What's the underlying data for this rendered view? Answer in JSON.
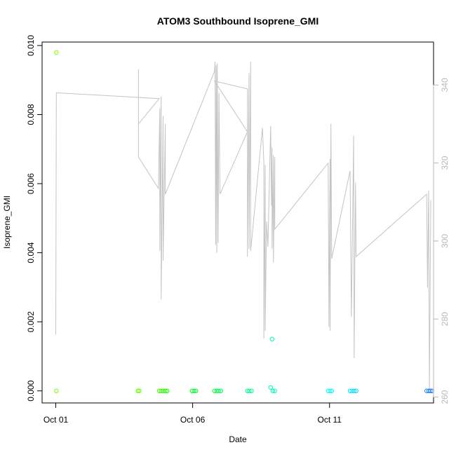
{
  "chart_data": {
    "type": "scatter",
    "title": "ATOM3 Southbound Isoprene_GMI",
    "xlabel": "Date",
    "ylabel": "Isoprene_GMI",
    "xlim": [
      -0.5,
      13.8
    ],
    "ylim": [
      -0.00035,
      0.0101
    ],
    "y2lim": [
      258.5,
      351.0
    ],
    "x_ticks": [
      0,
      5,
      10
    ],
    "x_tick_labels": [
      "Oct 01",
      "Oct 06",
      "Oct 11"
    ],
    "y_ticks": [
      0.0,
      0.002,
      0.004,
      0.006,
      0.008,
      0.01
    ],
    "y_tick_labels": [
      "0.000",
      "0.002",
      "0.004",
      "0.006",
      "0.008",
      "0.010"
    ],
    "y2_ticks": [
      260,
      280,
      300,
      320,
      340
    ],
    "y2_tick_labels": [
      "260",
      "280",
      "300",
      "320",
      "340"
    ],
    "grid": false,
    "series": [
      {
        "kind": "points",
        "axis": "left",
        "points": [
          {
            "x": 0.02,
            "y": 0.0098,
            "color": "#80ff00"
          },
          {
            "x": 0.02,
            "y": 0.0,
            "color": "#80ff00"
          },
          {
            "x": 3.0,
            "y": 0.0,
            "color": "#66ff00"
          },
          {
            "x": 3.05,
            "y": 0.0,
            "color": "#66ff00"
          },
          {
            "x": 3.78,
            "y": 0.0,
            "color": "#4dff00"
          },
          {
            "x": 3.85,
            "y": 0.0,
            "color": "#40ff00"
          },
          {
            "x": 3.92,
            "y": 0.0,
            "color": "#33ff00"
          },
          {
            "x": 4.0,
            "y": 0.0,
            "color": "#26ff00"
          },
          {
            "x": 4.07,
            "y": 0.0,
            "color": "#1aff00"
          },
          {
            "x": 4.98,
            "y": 0.0,
            "color": "#00ff1a"
          },
          {
            "x": 5.05,
            "y": 0.0,
            "color": "#00ff26"
          },
          {
            "x": 5.12,
            "y": 0.0,
            "color": "#00ff33"
          },
          {
            "x": 5.8,
            "y": 0.0,
            "color": "#00ff40"
          },
          {
            "x": 5.88,
            "y": 0.0,
            "color": "#00ff4d"
          },
          {
            "x": 5.95,
            "y": 0.0,
            "color": "#00ff59"
          },
          {
            "x": 6.03,
            "y": 0.0,
            "color": "#00ff66"
          },
          {
            "x": 7.0,
            "y": 0.0,
            "color": "#00ff80"
          },
          {
            "x": 7.07,
            "y": 0.0,
            "color": "#00ff8c"
          },
          {
            "x": 7.15,
            "y": 0.0,
            "color": "#00ff99"
          },
          {
            "x": 7.85,
            "y": 0.0001,
            "color": "#00ffa6"
          },
          {
            "x": 7.9,
            "y": 0.0015,
            "color": "#00ffb3"
          },
          {
            "x": 7.93,
            "y": 0.0,
            "color": "#00ffb8"
          },
          {
            "x": 8.0,
            "y": 0.0,
            "color": "#00ffbf"
          },
          {
            "x": 9.95,
            "y": 0.0,
            "color": "#00fff2"
          },
          {
            "x": 10.02,
            "y": 0.0,
            "color": "#00ffff"
          },
          {
            "x": 10.08,
            "y": 0.0,
            "color": "#00f9ff"
          },
          {
            "x": 10.75,
            "y": 0.0,
            "color": "#00f0ff"
          },
          {
            "x": 10.82,
            "y": 0.0,
            "color": "#00e8ff"
          },
          {
            "x": 10.9,
            "y": 0.0,
            "color": "#00e0ff"
          },
          {
            "x": 10.97,
            "y": 0.0,
            "color": "#00d8ff"
          },
          {
            "x": 13.55,
            "y": 0.0,
            "color": "#1a8cff"
          },
          {
            "x": 13.62,
            "y": 0.0,
            "color": "#1a86ff"
          },
          {
            "x": 13.68,
            "y": 0.0,
            "color": "#1a80ff"
          },
          {
            "x": 13.74,
            "y": 0.0,
            "color": "#1a7aff"
          }
        ]
      },
      {
        "kind": "line",
        "axis": "right",
        "color": "#c4c4c4",
        "points": [
          [
            0.0,
            276
          ],
          [
            0.02,
            338
          ],
          [
            3.78,
            336.5
          ],
          [
            3.02,
            330
          ],
          [
            3.02,
            344
          ],
          [
            3.02,
            321.5
          ],
          [
            3.75,
            313.5
          ],
          [
            3.8,
            334
          ],
          [
            3.8,
            297.5
          ],
          [
            3.85,
            337
          ],
          [
            3.85,
            285
          ],
          [
            3.92,
            332
          ],
          [
            3.92,
            295
          ],
          [
            4.0,
            330
          ],
          [
            4.0,
            312
          ],
          [
            5.8,
            343.5
          ],
          [
            5.82,
            346
          ],
          [
            5.84,
            299
          ],
          [
            5.86,
            345
          ],
          [
            5.88,
            297
          ],
          [
            5.9,
            345.5
          ],
          [
            5.93,
            299.5
          ],
          [
            5.96,
            338
          ],
          [
            6.0,
            312
          ],
          [
            7.0,
            328
          ],
          [
            5.8,
            341
          ],
          [
            7.0,
            339
          ],
          [
            7.0,
            296
          ],
          [
            7.06,
            343
          ],
          [
            7.06,
            298
          ],
          [
            7.12,
            346
          ],
          [
            7.12,
            297.5
          ],
          [
            7.55,
            329
          ],
          [
            7.6,
            320
          ],
          [
            7.6,
            275
          ],
          [
            7.65,
            319.5
          ],
          [
            7.65,
            277
          ],
          [
            7.7,
            305
          ],
          [
            7.75,
            298.5
          ],
          [
            7.85,
            329.5
          ],
          [
            7.88,
            309
          ],
          [
            7.9,
            324
          ],
          [
            7.9,
            298
          ],
          [
            7.95,
            322
          ],
          [
            7.95,
            294.5
          ],
          [
            8.0,
            321.5
          ],
          [
            8.0,
            303
          ],
          [
            9.95,
            320
          ],
          [
            9.98,
            278
          ],
          [
            10.02,
            321
          ],
          [
            10.02,
            277
          ],
          [
            10.05,
            330
          ],
          [
            10.08,
            295.5
          ],
          [
            10.75,
            318
          ],
          [
            10.8,
            280.5
          ],
          [
            10.88,
            327
          ],
          [
            10.9,
            270
          ],
          [
            10.95,
            315
          ],
          [
            10.97,
            296
          ],
          [
            13.55,
            312
          ],
          [
            13.58,
            288
          ],
          [
            13.62,
            313
          ],
          [
            13.65,
            262
          ],
          [
            13.7,
            310.5
          ]
        ]
      }
    ]
  }
}
